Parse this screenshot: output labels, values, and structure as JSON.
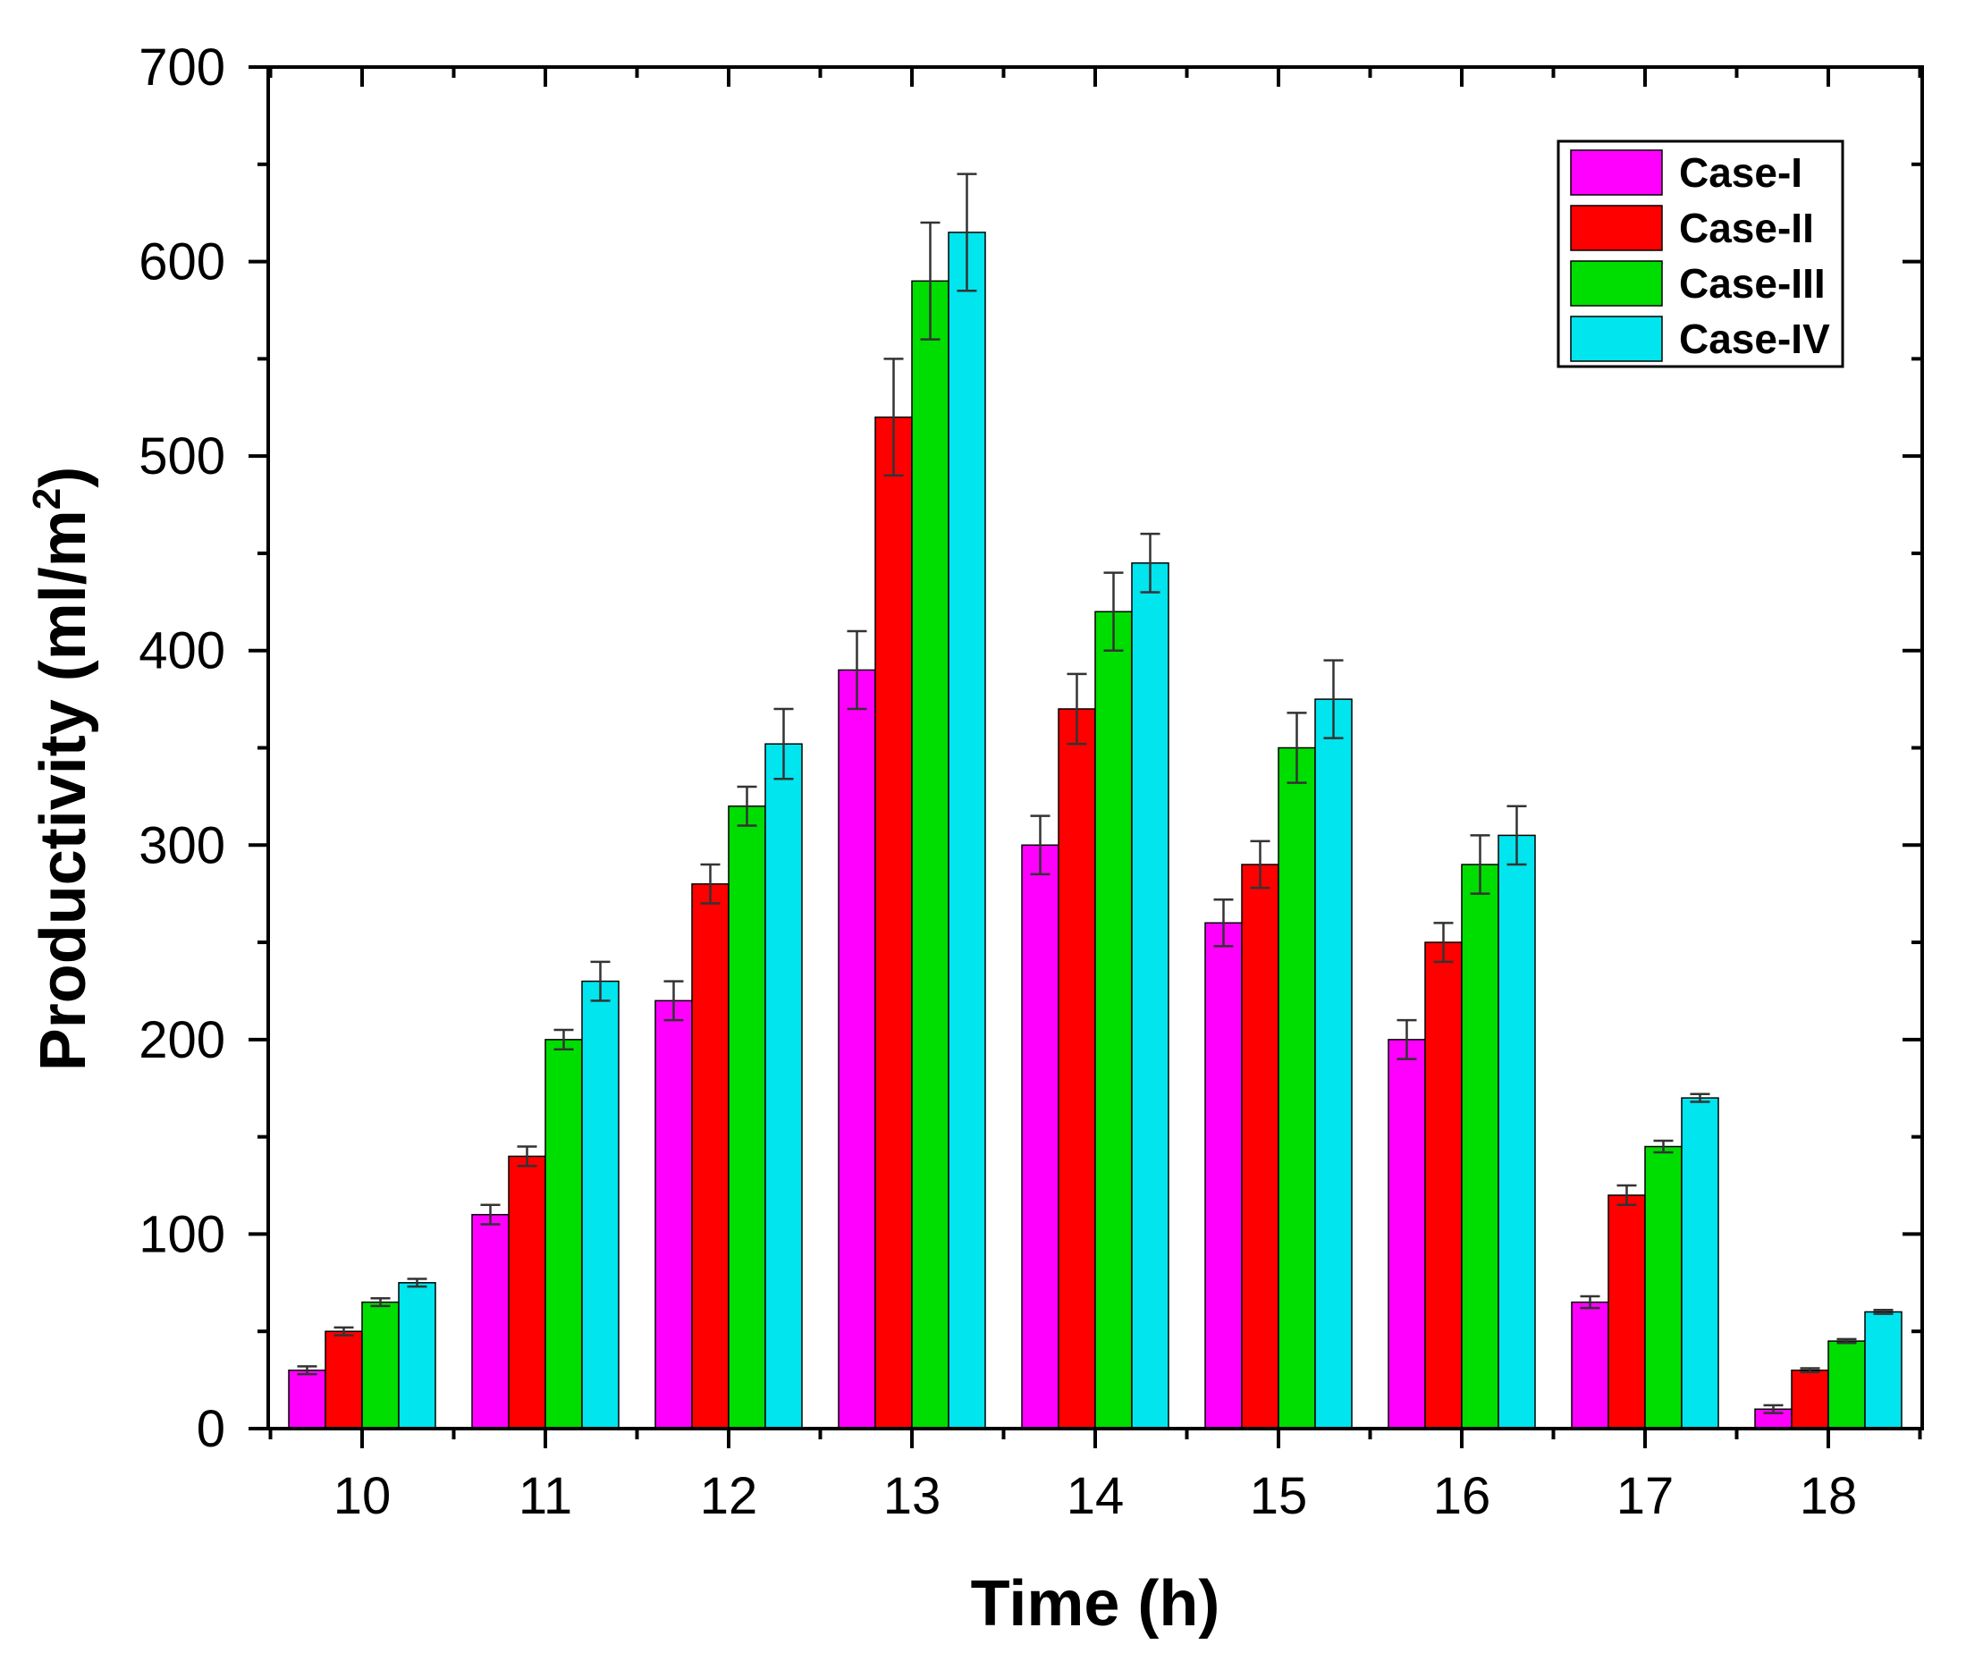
{
  "chart_data": {
    "type": "bar",
    "xlabel": "Time (h)",
    "ylabel_main": "Productivity (ml/m",
    "ylabel_sup": "2",
    "ylabel_close": ")",
    "ylim": [
      0,
      700
    ],
    "yticks": [
      0,
      100,
      200,
      300,
      400,
      500,
      600,
      700
    ],
    "ytick_labels": [
      "0",
      "100",
      "200",
      "300",
      "400",
      "500",
      "600",
      "700"
    ],
    "categories": [
      "10",
      "11",
      "12",
      "13",
      "14",
      "15",
      "16",
      "17",
      "18"
    ],
    "legend_position": "top-right",
    "grid": false,
    "series": [
      {
        "name": "Case-I",
        "color": "#ff00ff",
        "values": [
          30,
          110,
          220,
          390,
          300,
          260,
          200,
          65,
          10
        ],
        "errors": [
          2,
          5,
          10,
          20,
          15,
          12,
          10,
          3,
          2
        ]
      },
      {
        "name": "Case-II",
        "color": "#ff0000",
        "values": [
          50,
          140,
          280,
          520,
          370,
          290,
          250,
          120,
          30
        ],
        "errors": [
          2,
          5,
          10,
          30,
          18,
          12,
          10,
          5,
          1
        ]
      },
      {
        "name": "Case-III",
        "color": "#00dd00",
        "values": [
          65,
          200,
          320,
          590,
          420,
          350,
          290,
          145,
          45
        ],
        "errors": [
          2,
          5,
          10,
          30,
          20,
          18,
          15,
          3,
          1
        ]
      },
      {
        "name": "Case-IV",
        "color": "#00e5ee",
        "values": [
          75,
          230,
          352,
          615,
          445,
          375,
          305,
          170,
          60
        ],
        "errors": [
          2,
          10,
          18,
          30,
          15,
          20,
          15,
          2,
          1
        ]
      }
    ]
  }
}
